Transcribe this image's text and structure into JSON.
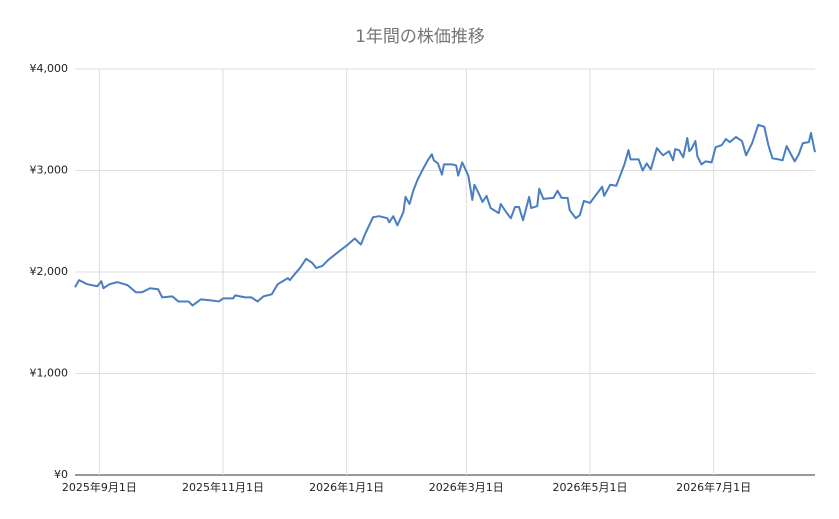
{
  "chart_data": {
    "type": "line",
    "title": "1年間の株価推移",
    "color": "#4a7ec3",
    "grid": true,
    "x": [
      "2025-08-20",
      "2025-08-22",
      "2025-08-26",
      "2025-08-31",
      "2025-09-02",
      "2025-09-03",
      "2025-09-06",
      "2025-09-10",
      "2025-09-15",
      "2025-09-19",
      "2025-09-22",
      "2025-09-26",
      "2025-09-30",
      "2025-10-02",
      "2025-10-07",
      "2025-10-10",
      "2025-10-15",
      "2025-10-17",
      "2025-10-21",
      "2025-10-26",
      "2025-10-30",
      "2025-11-01",
      "2025-11-06",
      "2025-11-07",
      "2025-11-12",
      "2025-11-15",
      "2025-11-18",
      "2025-11-21",
      "2025-11-25",
      "2025-11-28",
      "2025-12-03",
      "2025-12-04",
      "2025-12-06",
      "2025-12-09",
      "2025-12-12",
      "2025-12-15",
      "2025-12-17",
      "2025-12-20",
      "2025-12-23",
      "2025-12-28",
      "2026-01-01",
      "2026-01-05",
      "2026-01-08",
      "2026-01-10",
      "2026-01-14",
      "2026-01-17",
      "2026-01-21",
      "2026-01-22",
      "2026-01-24",
      "2026-01-26",
      "2026-01-29",
      "2026-01-30",
      "2026-02-01",
      "2026-02-03",
      "2026-02-05",
      "2026-02-07",
      "2026-02-10",
      "2026-02-12",
      "2026-02-13",
      "2026-02-15",
      "2026-02-17",
      "2026-02-18",
      "2026-02-22",
      "2026-02-24",
      "2026-02-25",
      "2026-02-27",
      "2026-03-02",
      "2026-03-04",
      "2026-03-05",
      "2026-03-07",
      "2026-03-09",
      "2026-03-11",
      "2026-03-13",
      "2026-03-17",
      "2026-03-18",
      "2026-03-21",
      "2026-03-23",
      "2026-03-25",
      "2026-03-27",
      "2026-03-29",
      "2026-04-01",
      "2026-04-02",
      "2026-04-05",
      "2026-04-06",
      "2026-04-08",
      "2026-04-13",
      "2026-04-15",
      "2026-04-17",
      "2026-04-20",
      "2026-04-21",
      "2026-04-24",
      "2026-04-26",
      "2026-04-28",
      "2026-05-01",
      "2026-05-04",
      "2026-05-07",
      "2026-05-08",
      "2026-05-11",
      "2026-05-14",
      "2026-05-18",
      "2026-05-20",
      "2026-05-21",
      "2026-05-25",
      "2026-05-27",
      "2026-05-29",
      "2026-05-31",
      "2026-06-03",
      "2026-06-06",
      "2026-06-09",
      "2026-06-11",
      "2026-06-12",
      "2026-06-14",
      "2026-06-16",
      "2026-06-18",
      "2026-06-19",
      "2026-06-20",
      "2026-06-22",
      "2026-06-23",
      "2026-06-25",
      "2026-06-27",
      "2026-06-30",
      "2026-07-02",
      "2026-07-05",
      "2026-07-07",
      "2026-07-09",
      "2026-07-12",
      "2026-07-15",
      "2026-07-17",
      "2026-07-20",
      "2026-07-23",
      "2026-07-26",
      "2026-07-28",
      "2026-07-30",
      "2026-08-02",
      "2026-08-04",
      "2026-08-06",
      "2026-08-10",
      "2026-08-12",
      "2026-08-14",
      "2026-08-17",
      "2026-08-18",
      "2026-08-20"
    ],
    "values": [
      1850,
      1920,
      1880,
      1860,
      1910,
      1840,
      1880,
      1900,
      1870,
      1800,
      1800,
      1840,
      1830,
      1750,
      1760,
      1710,
      1710,
      1670,
      1730,
      1720,
      1710,
      1740,
      1740,
      1770,
      1750,
      1750,
      1710,
      1760,
      1780,
      1880,
      1940,
      1920,
      1970,
      2040,
      2130,
      2090,
      2040,
      2060,
      2120,
      2200,
      2260,
      2330,
      2270,
      2370,
      2540,
      2550,
      2530,
      2490,
      2550,
      2460,
      2590,
      2740,
      2670,
      2810,
      2910,
      2990,
      3100,
      3160,
      3100,
      3070,
      2960,
      3060,
      3060,
      3050,
      2950,
      3080,
      2950,
      2710,
      2860,
      2780,
      2690,
      2750,
      2630,
      2580,
      2670,
      2580,
      2530,
      2640,
      2640,
      2510,
      2740,
      2630,
      2650,
      2820,
      2720,
      2730,
      2800,
      2730,
      2730,
      2610,
      2530,
      2560,
      2700,
      2680,
      2760,
      2840,
      2750,
      2860,
      2850,
      3060,
      3200,
      3110,
      3110,
      3000,
      3070,
      3010,
      3220,
      3150,
      3190,
      3100,
      3210,
      3200,
      3130,
      3320,
      3190,
      3210,
      3290,
      3140,
      3060,
      3090,
      3080,
      3230,
      3250,
      3310,
      3280,
      3330,
      3290,
      3150,
      3270,
      3450,
      3430,
      3250,
      3120,
      3110,
      3100,
      3240,
      3090,
      3160,
      3270,
      3280,
      3370,
      3180
    ],
    "xlim": [
      "2025-08-20",
      "2026-08-20"
    ],
    "xticks": [
      {
        "value": "2025-09-01",
        "label": "2025年9月1日"
      },
      {
        "value": "2025-11-01",
        "label": "2025年11月1日"
      },
      {
        "value": "2026-01-01",
        "label": "2026年1月1日"
      },
      {
        "value": "2026-03-01",
        "label": "2026年3月1日"
      },
      {
        "value": "2026-05-01",
        "label": "2026年5月1日"
      },
      {
        "value": "2026-07-01",
        "label": "2026年7月1日"
      }
    ],
    "ylim": [
      0,
      4000
    ],
    "yticks": [
      {
        "value": 0,
        "label": "¥0"
      },
      {
        "value": 1000,
        "label": "¥1,000"
      },
      {
        "value": 2000,
        "label": "¥2,000"
      },
      {
        "value": 3000,
        "label": "¥3,000"
      },
      {
        "value": 4000,
        "label": "¥4,000"
      }
    ]
  }
}
